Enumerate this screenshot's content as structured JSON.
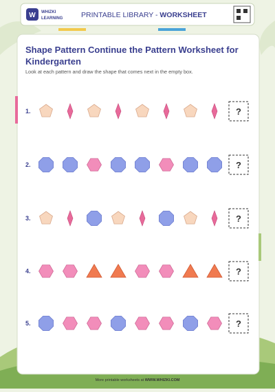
{
  "header": {
    "logo_top": "WHIZKI",
    "logo_bottom": "LEARNING",
    "library": "PRINTABLE LIBRARY - ",
    "kind": "WORKSHEET"
  },
  "title": "Shape Pattern Continue the Pattern Worksheet for Kindergarten",
  "instructions": "Look at each pattern and draw the shape that comes next in the empty box.",
  "rows": [
    {
      "label": "1.",
      "answer": "?"
    },
    {
      "label": "2.",
      "answer": "?"
    },
    {
      "label": "3.",
      "answer": "?"
    },
    {
      "label": "4.",
      "answer": "?"
    },
    {
      "label": "5.",
      "answer": "?"
    }
  ],
  "footer": {
    "text": "More printable worksheets at ",
    "link": "WWW.WHIZKI.COM"
  }
}
